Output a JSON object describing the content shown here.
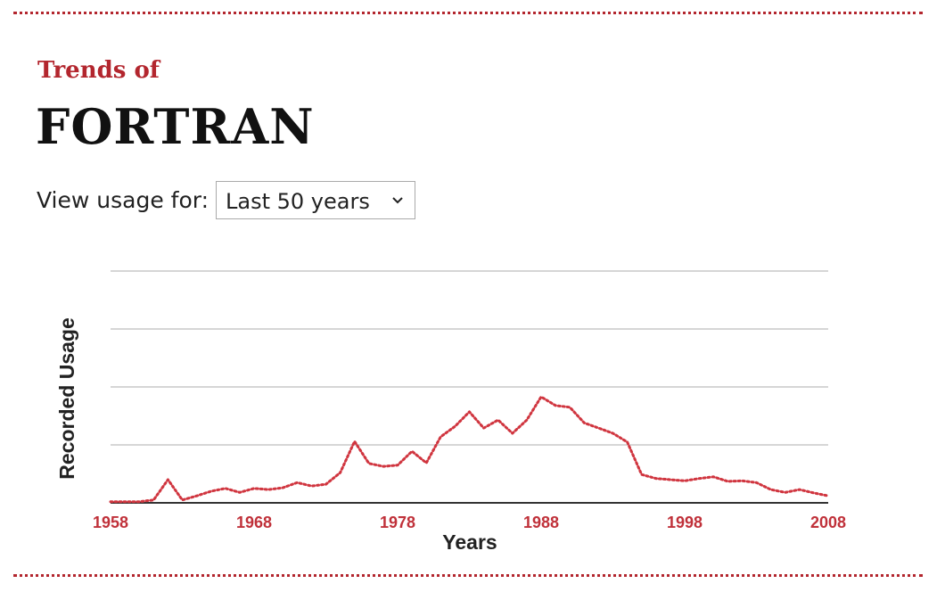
{
  "header": {
    "kicker": "Trends of",
    "title": "FORTRAN"
  },
  "control": {
    "label": "View usage for:",
    "value": "Last 50 years"
  },
  "chart_data": {
    "type": "line",
    "x_label": "Years",
    "y_label": "Recorded Usage",
    "x": [
      1958,
      1959,
      1960,
      1961,
      1962,
      1963,
      1964,
      1965,
      1966,
      1967,
      1968,
      1969,
      1970,
      1971,
      1972,
      1973,
      1974,
      1975,
      1976,
      1977,
      1978,
      1979,
      1980,
      1981,
      1982,
      1983,
      1984,
      1985,
      1986,
      1987,
      1988,
      1989,
      1990,
      1991,
      1992,
      1993,
      1994,
      1995,
      1996,
      1997,
      1998,
      1999,
      2000,
      2001,
      2002,
      2003,
      2004,
      2005,
      2006,
      2007,
      2008
    ],
    "series": [
      {
        "color": "#d0353f",
        "values": [
          0.02,
          0.02,
          0.02,
          0.05,
          0.4,
          0.05,
          0.12,
          0.2,
          0.25,
          0.18,
          0.25,
          0.23,
          0.26,
          0.35,
          0.29,
          0.32,
          0.52,
          1.06,
          0.68,
          0.63,
          0.65,
          0.89,
          0.69,
          1.14,
          1.32,
          1.57,
          1.29,
          1.43,
          1.2,
          1.43,
          1.83,
          1.68,
          1.65,
          1.38,
          1.29,
          1.2,
          1.05,
          0.49,
          0.42,
          0.4,
          0.38,
          0.42,
          0.45,
          0.37,
          0.38,
          0.35,
          0.23,
          0.18,
          0.23,
          0.17,
          0.12
        ]
      }
    ],
    "xlim": [
      1958,
      2008
    ],
    "xticks": [
      1958,
      1968,
      1978,
      1988,
      1998,
      2008
    ],
    "ylim": [
      0,
      4
    ],
    "y_gridlines": [
      1,
      2,
      3,
      4
    ],
    "grid": true,
    "tick_color": "#c0313a"
  }
}
